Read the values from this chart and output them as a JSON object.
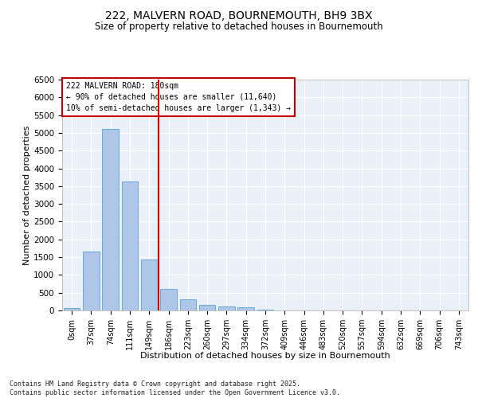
{
  "title_line1": "222, MALVERN ROAD, BOURNEMOUTH, BH9 3BX",
  "title_line2": "Size of property relative to detached houses in Bournemouth",
  "xlabel": "Distribution of detached houses by size in Bournemouth",
  "ylabel": "Number of detached properties",
  "footnote1": "Contains HM Land Registry data © Crown copyright and database right 2025.",
  "footnote2": "Contains public sector information licensed under the Open Government Licence v3.0.",
  "annotation_line1": "222 MALVERN ROAD: 180sqm",
  "annotation_line2": "← 90% of detached houses are smaller (11,640)",
  "annotation_line3": "10% of semi-detached houses are larger (1,343) →",
  "bar_labels": [
    "0sqm",
    "37sqm",
    "74sqm",
    "111sqm",
    "149sqm",
    "186sqm",
    "223sqm",
    "260sqm",
    "297sqm",
    "334sqm",
    "372sqm",
    "409sqm",
    "446sqm",
    "483sqm",
    "520sqm",
    "557sqm",
    "594sqm",
    "632sqm",
    "669sqm",
    "706sqm",
    "743sqm"
  ],
  "bar_values": [
    60,
    1650,
    5100,
    3620,
    1430,
    600,
    305,
    165,
    115,
    80,
    30,
    5,
    0,
    0,
    0,
    0,
    0,
    0,
    0,
    0,
    0
  ],
  "bar_color": "#aec6e8",
  "bar_edge_color": "#6aaad4",
  "vline_color": "#cc0000",
  "annotation_box_color": "#cc0000",
  "background_color": "#eaf0f8",
  "ylim": [
    0,
    6500
  ],
  "yticks": [
    0,
    500,
    1000,
    1500,
    2000,
    2500,
    3000,
    3500,
    4000,
    4500,
    5000,
    5500,
    6000,
    6500
  ]
}
